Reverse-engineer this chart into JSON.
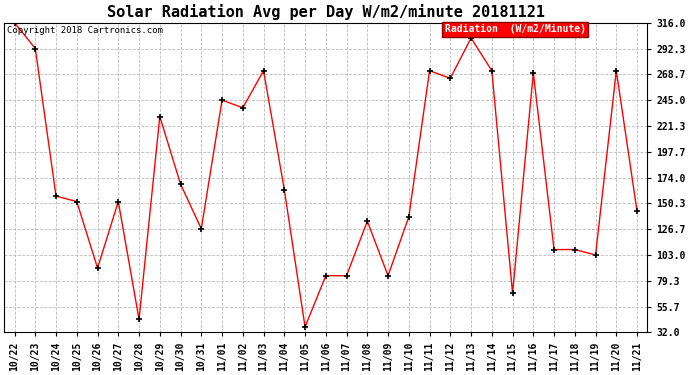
{
  "title": "Solar Radiation Avg per Day W/m2/minute 20181121",
  "copyright_text": "Copyright 2018 Cartronics.com",
  "legend_label": "Radiation  (W/m2/Minute)",
  "dates": [
    "10/22",
    "10/23",
    "10/24",
    "10/25",
    "10/26",
    "10/27",
    "10/28",
    "10/29",
    "10/30",
    "10/31",
    "11/01",
    "11/02",
    "11/03",
    "11/04",
    "11/05",
    "11/06",
    "11/07",
    "11/08",
    "11/09",
    "11/10",
    "11/11",
    "11/12",
    "11/13",
    "11/14",
    "11/15",
    "11/16",
    "11/17",
    "11/18",
    "11/19",
    "11/20",
    "11/21"
  ],
  "values": [
    316.0,
    292.3,
    157.0,
    152.0,
    91.0,
    152.0,
    44.0,
    230.0,
    168.0,
    127.0,
    245.0,
    238.0,
    272.0,
    163.0,
    37.0,
    84.0,
    84.0,
    134.0,
    84.0,
    138.0,
    272.0,
    265.0,
    302.0,
    272.0,
    68.0,
    270.0,
    108.0,
    108.0,
    103.0,
    272.0,
    143.0
  ],
  "ylim": [
    32.0,
    316.0
  ],
  "yticks": [
    32.0,
    55.7,
    79.3,
    103.0,
    126.7,
    150.3,
    174.0,
    197.7,
    221.3,
    245.0,
    268.7,
    292.3,
    316.0
  ],
  "line_color": "red",
  "marker_color": "black",
  "grid_color": "#bbbbbb",
  "background_color": "#ffffff",
  "legend_bg": "red",
  "legend_text_color": "white",
  "title_fontsize": 11,
  "copyright_fontsize": 6.5,
  "tick_fontsize": 7,
  "legend_fontsize": 7
}
